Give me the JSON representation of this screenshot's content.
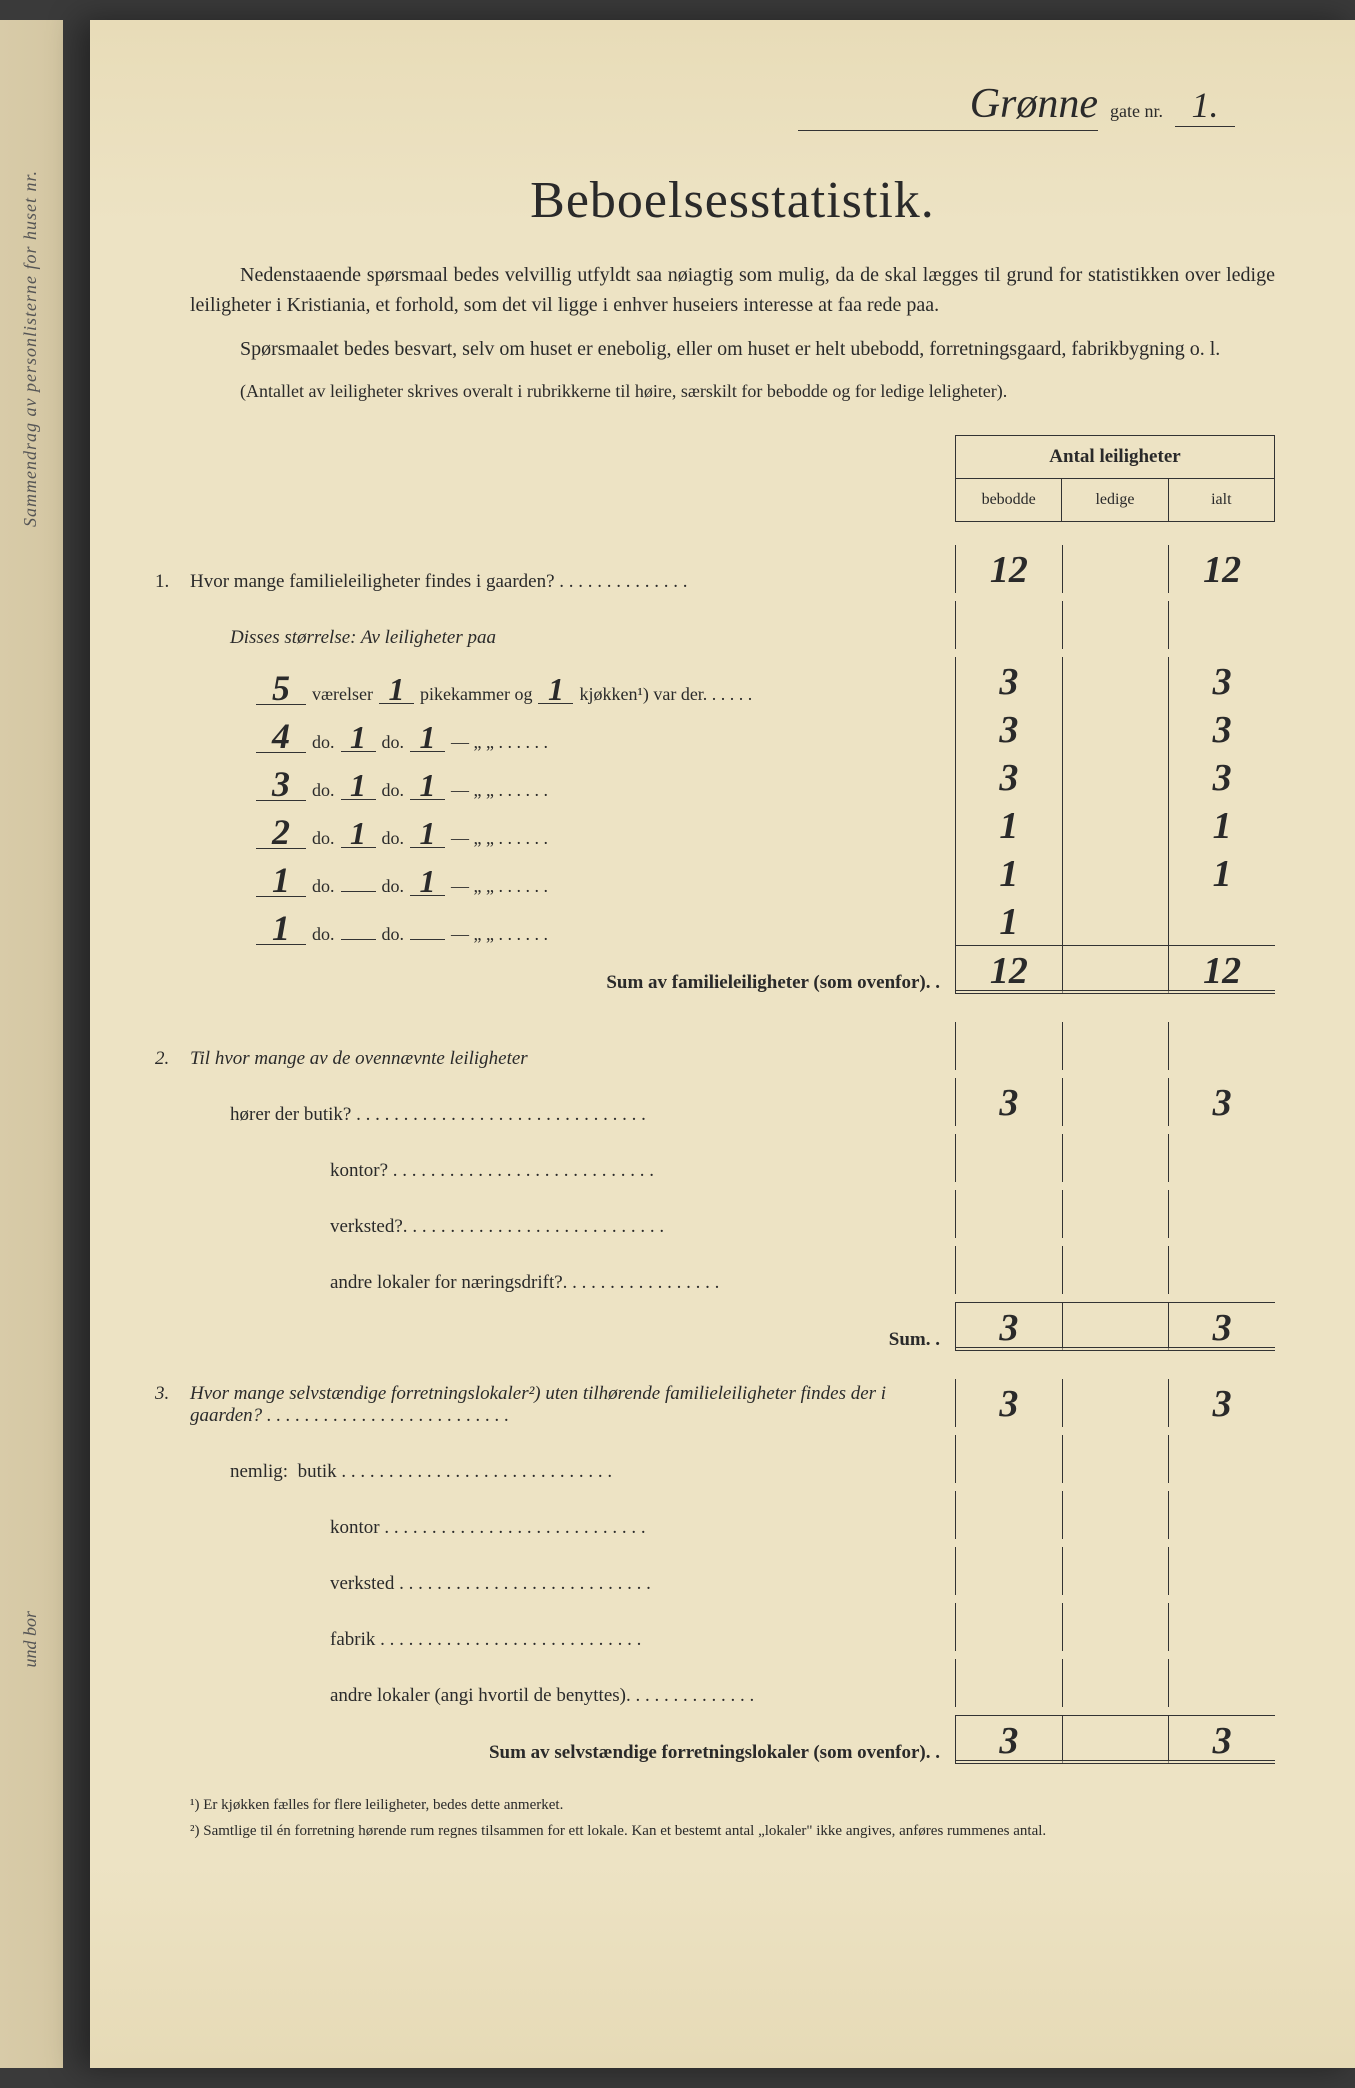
{
  "header": {
    "street_name": "Grønne",
    "gate_label": "gate nr.",
    "street_nr": "1."
  },
  "title": "Beboelsesstatistik.",
  "intro": {
    "p1": "Nedenstaaende spørsmaal bedes velvillig utfyldt saa nøiagtig som mulig, da de skal lægges til grund for statistikken over ledige leiligheter i Kristiania, et forhold, som det vil ligge i enhver huseiers interesse at faa rede paa.",
    "p2": "Spørsmaalet bedes besvart, selv om huset er enebolig, eller om huset er helt ubebodd, forretningsgaard, fabrikbygning o. l.",
    "p3": "(Antallet av leiligheter skrives overalt i rubrikkerne til høire, særskilt for bebodde og for ledige leligheter)."
  },
  "table_header": {
    "title": "Antal leiligheter",
    "col1": "bebodde",
    "col2": "ledige",
    "col3": "ialt"
  },
  "q1": {
    "label": "Hvor mange familieleiligheter findes i gaarden?",
    "bebodde": "12",
    "ledige": "",
    "ialt": "12",
    "size_intro": "Disses størrelse:  Av leiligheter paa",
    "rows": [
      {
        "vaer": "5",
        "pike": "1",
        "kjok": "1",
        "tail": "kjøkken¹) var der.",
        "b": "3",
        "l": "",
        "i": "3"
      },
      {
        "vaer": "4",
        "pike": "1",
        "kjok": "1",
        "tail": "—      „    „ .",
        "b": "3",
        "l": "",
        "i": "3"
      },
      {
        "vaer": "3",
        "pike": "1",
        "kjok": "1",
        "tail": "—      „    „ .",
        "b": "3",
        "l": "",
        "i": "3"
      },
      {
        "vaer": "2",
        "pike": "1",
        "kjok": "1",
        "tail": "—      „    „ .",
        "b": "1",
        "l": "",
        "i": "1"
      },
      {
        "vaer": "1",
        "pike": "",
        "kjok": "1",
        "tail": "—      „    „ .",
        "b": "1",
        "l": "",
        "i": "1"
      },
      {
        "vaer": "1",
        "pike": "",
        "kjok": "",
        "tail": "—      „    „ .",
        "b": "1",
        "l": "",
        "i": ""
      }
    ],
    "row_labels": {
      "vaerelser": "værelser",
      "do": "do.",
      "pikekammer": "pikekammer og"
    },
    "sum_label": "Sum av familieleiligheter (som ovenfor). .",
    "sum_b": "12",
    "sum_l": "",
    "sum_i": "12"
  },
  "q2": {
    "label": "Til hvor mange av de ovennævnte leiligheter",
    "sub1": "hører der butik?",
    "b1": "3",
    "l1": "",
    "i1": "3",
    "sub2": "kontor?",
    "sub3": "verksted?.",
    "sub4": "andre lokaler for næringsdrift?.",
    "sum_label": "Sum. .",
    "sum_b": "3",
    "sum_l": "",
    "sum_i": "3"
  },
  "q3": {
    "label": "Hvor mange selvstændige forretningslokaler²) uten tilhørende familieleiligheter findes der i gaarden?",
    "b": "3",
    "l": "",
    "i": "3",
    "nemlig": "nemlig:",
    "sub1": "butik",
    "sub2": "kontor",
    "sub3": "verksted",
    "sub4": "fabrik",
    "sub5": "andre lokaler (angi hvortil de benyttes).",
    "sum_label": "Sum av selvstændige forretningslokaler (som ovenfor). .",
    "sum_b": "3",
    "sum_l": "",
    "sum_i": "3"
  },
  "footnotes": {
    "f1": "¹) Er kjøkken fælles for flere leiligheter, bedes dette anmerket.",
    "f2": "²) Samtlige til én forretning hørende rum regnes tilsammen for ett lokale. Kan et bestemt antal „lokaler\" ikke angives, anføres rummenes antal."
  },
  "margin": {
    "text1": "Sammendrag av personlisterne for huset nr.",
    "text2": "und bor"
  }
}
